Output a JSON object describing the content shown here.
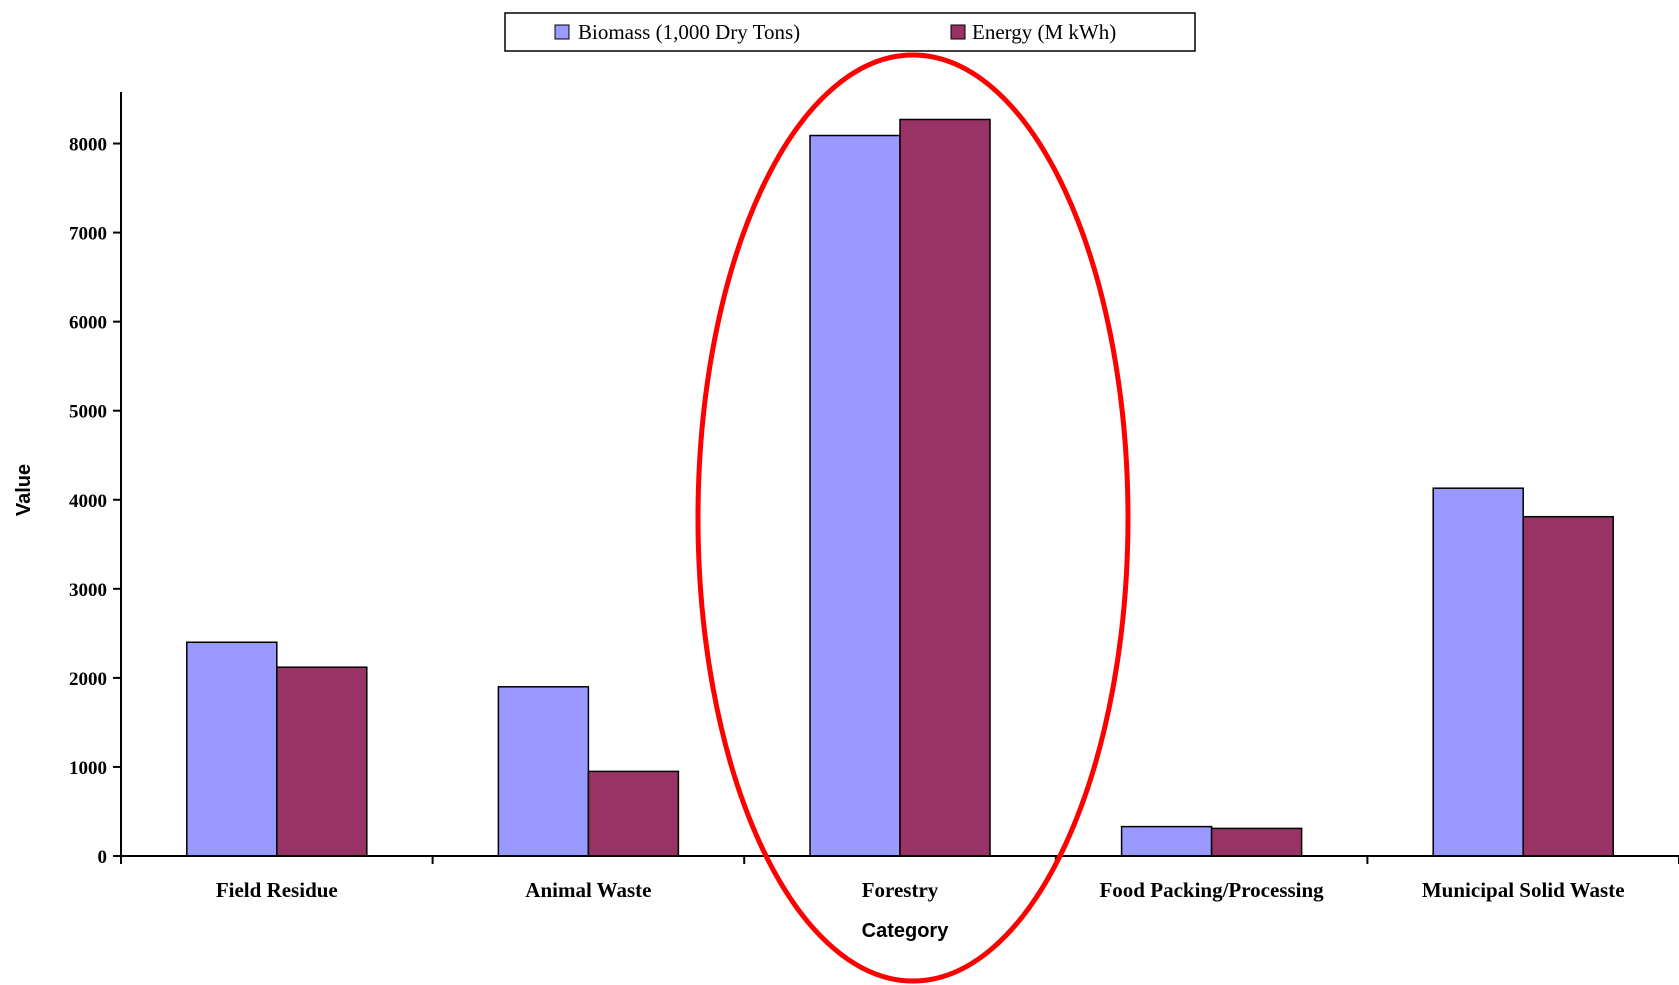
{
  "chart_data": {
    "type": "bar",
    "categories": [
      "Field Residue",
      "Animal Waste",
      "Forestry",
      "Food Packing/Processing",
      "Municipal Solid Waste"
    ],
    "series": [
      {
        "name": "Biomass (1,000 Dry Tons)",
        "color": "#9999ff",
        "values": [
          2400,
          1900,
          8090,
          330,
          4130
        ]
      },
      {
        "name": "Energy (M kWh)",
        "color": "#993366",
        "values": [
          2120,
          950,
          8270,
          310,
          3810
        ]
      }
    ],
    "xlabel": "Category",
    "ylabel": "Value",
    "ylim": [
      0,
      8500
    ],
    "yticks": [
      0,
      1000,
      2000,
      3000,
      4000,
      5000,
      6000,
      7000,
      8000
    ],
    "legend_position": "top-center",
    "grid": false,
    "annotation": {
      "shape": "ellipse",
      "color": "#ff0000",
      "highlights": "Forestry"
    }
  }
}
